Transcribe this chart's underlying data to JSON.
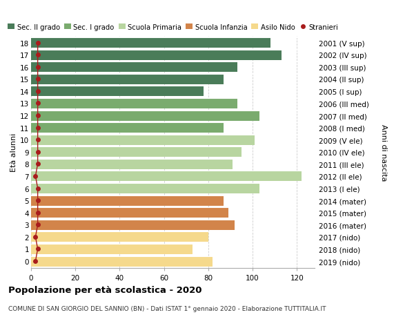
{
  "ages": [
    18,
    17,
    16,
    15,
    14,
    13,
    12,
    11,
    10,
    9,
    8,
    7,
    6,
    5,
    4,
    3,
    2,
    1,
    0
  ],
  "right_labels": [
    "2001 (V sup)",
    "2002 (IV sup)",
    "2003 (III sup)",
    "2004 (II sup)",
    "2005 (I sup)",
    "2006 (III med)",
    "2007 (II med)",
    "2008 (I med)",
    "2009 (V ele)",
    "2010 (IV ele)",
    "2011 (III ele)",
    "2012 (II ele)",
    "2013 (I ele)",
    "2014 (mater)",
    "2015 (mater)",
    "2016 (mater)",
    "2017 (nido)",
    "2018 (nido)",
    "2019 (nido)"
  ],
  "bar_values": [
    108,
    113,
    93,
    87,
    78,
    93,
    103,
    87,
    101,
    95,
    91,
    122,
    103,
    87,
    89,
    92,
    80,
    73,
    82
  ],
  "stranieri_values": [
    3,
    3,
    3,
    3,
    3,
    3,
    3,
    3,
    3,
    3,
    3,
    2,
    3,
    3,
    3,
    3,
    2,
    3,
    2
  ],
  "bar_colors": [
    "#4a7c59",
    "#4a7c59",
    "#4a7c59",
    "#4a7c59",
    "#4a7c59",
    "#7aab6e",
    "#7aab6e",
    "#7aab6e",
    "#b8d5a0",
    "#b8d5a0",
    "#b8d5a0",
    "#b8d5a0",
    "#b8d5a0",
    "#d2844a",
    "#d2844a",
    "#d2844a",
    "#f5d98c",
    "#f5d98c",
    "#f5d98c"
  ],
  "legend_labels": [
    "Sec. II grado",
    "Sec. I grado",
    "Scuola Primaria",
    "Scuola Infanzia",
    "Asilo Nido",
    "Stranieri"
  ],
  "legend_colors": [
    "#4a7c59",
    "#7aab6e",
    "#b8d5a0",
    "#d2844a",
    "#f5d98c",
    "#a81c1c"
  ],
  "title": "Popolazione per età scolastica - 2020",
  "subtitle": "COMUNE DI SAN GIORGIO DEL SANNIO (BN) - Dati ISTAT 1° gennaio 2020 - Elaborazione TUTTITALIA.IT",
  "xlabel_left": "Età alunni",
  "xlabel_right": "Anni di nascita",
  "xlim": [
    0,
    128
  ],
  "xticks": [
    0,
    20,
    40,
    60,
    80,
    100,
    120
  ],
  "background_color": "#ffffff",
  "grid_color": "#cccccc",
  "bar_height": 0.85
}
